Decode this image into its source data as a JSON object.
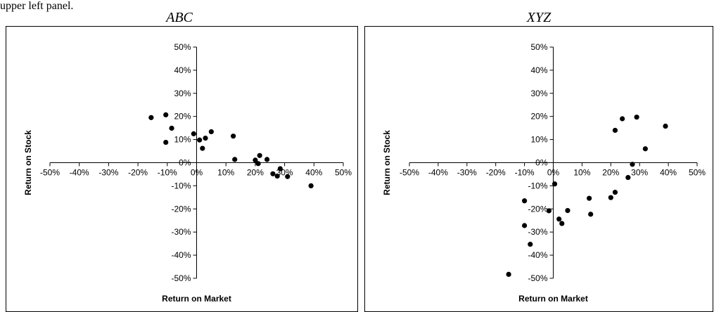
{
  "caption": "upper left panel.",
  "chart_data": [
    {
      "type": "scatter",
      "title": "ABC",
      "xlabel": "Return on Market",
      "ylabel": "Return on Stock",
      "xlim": [
        -0.5,
        0.5
      ],
      "ylim": [
        -0.5,
        0.5
      ],
      "x_ticks": [
        "-50%",
        "-40%",
        "-30%",
        "-20%",
        "-10%",
        "0%",
        "10%",
        "20%",
        "30%",
        "40%",
        "50%"
      ],
      "y_ticks": [
        "50%",
        "40%",
        "30%",
        "20%",
        "10%",
        "0%",
        "-10%",
        "-20%",
        "-30%",
        "-40%",
        "-50%"
      ],
      "points": [
        {
          "x": -0.155,
          "y": 0.195
        },
        {
          "x": -0.105,
          "y": 0.207
        },
        {
          "x": -0.085,
          "y": 0.149
        },
        {
          "x": -0.105,
          "y": 0.088
        },
        {
          "x": -0.01,
          "y": 0.125
        },
        {
          "x": 0.01,
          "y": 0.098
        },
        {
          "x": 0.03,
          "y": 0.106
        },
        {
          "x": 0.02,
          "y": 0.062
        },
        {
          "x": 0.05,
          "y": 0.134
        },
        {
          "x": 0.125,
          "y": 0.115
        },
        {
          "x": 0.13,
          "y": 0.014
        },
        {
          "x": 0.2,
          "y": 0.011
        },
        {
          "x": 0.215,
          "y": 0.031
        },
        {
          "x": 0.21,
          "y": -0.004
        },
        {
          "x": 0.24,
          "y": 0.014
        },
        {
          "x": 0.26,
          "y": -0.048
        },
        {
          "x": 0.275,
          "y": -0.058
        },
        {
          "x": 0.285,
          "y": -0.026
        },
        {
          "x": 0.31,
          "y": -0.06
        },
        {
          "x": 0.39,
          "y": -0.1
        }
      ]
    },
    {
      "type": "scatter",
      "title": "XYZ",
      "xlabel": "Return on Market",
      "ylabel": "Return on Stock",
      "xlim": [
        -0.5,
        0.5
      ],
      "ylim": [
        -0.5,
        0.5
      ],
      "x_ticks": [
        "-50%",
        "-40%",
        "-30%",
        "-20%",
        "-10%",
        "0%",
        "10%",
        "20%",
        "30%",
        "40%",
        "50%"
      ],
      "y_ticks": [
        "50%",
        "40%",
        "30%",
        "20%",
        "10%",
        "0%",
        "-10%",
        "-20%",
        "-30%",
        "-40%",
        "-50%"
      ],
      "points": [
        {
          "x": -0.155,
          "y": -0.483
        },
        {
          "x": -0.1,
          "y": -0.165
        },
        {
          "x": -0.1,
          "y": -0.272
        },
        {
          "x": -0.08,
          "y": -0.353
        },
        {
          "x": -0.015,
          "y": -0.208
        },
        {
          "x": 0.005,
          "y": -0.092
        },
        {
          "x": 0.02,
          "y": -0.244
        },
        {
          "x": 0.03,
          "y": -0.263
        },
        {
          "x": 0.05,
          "y": -0.207
        },
        {
          "x": 0.125,
          "y": -0.154
        },
        {
          "x": 0.13,
          "y": -0.223
        },
        {
          "x": 0.2,
          "y": -0.151
        },
        {
          "x": 0.215,
          "y": 0.14
        },
        {
          "x": 0.215,
          "y": -0.128
        },
        {
          "x": 0.24,
          "y": 0.19
        },
        {
          "x": 0.26,
          "y": -0.064
        },
        {
          "x": 0.275,
          "y": -0.007
        },
        {
          "x": 0.29,
          "y": 0.197
        },
        {
          "x": 0.32,
          "y": 0.06
        },
        {
          "x": 0.39,
          "y": 0.158
        }
      ]
    }
  ]
}
